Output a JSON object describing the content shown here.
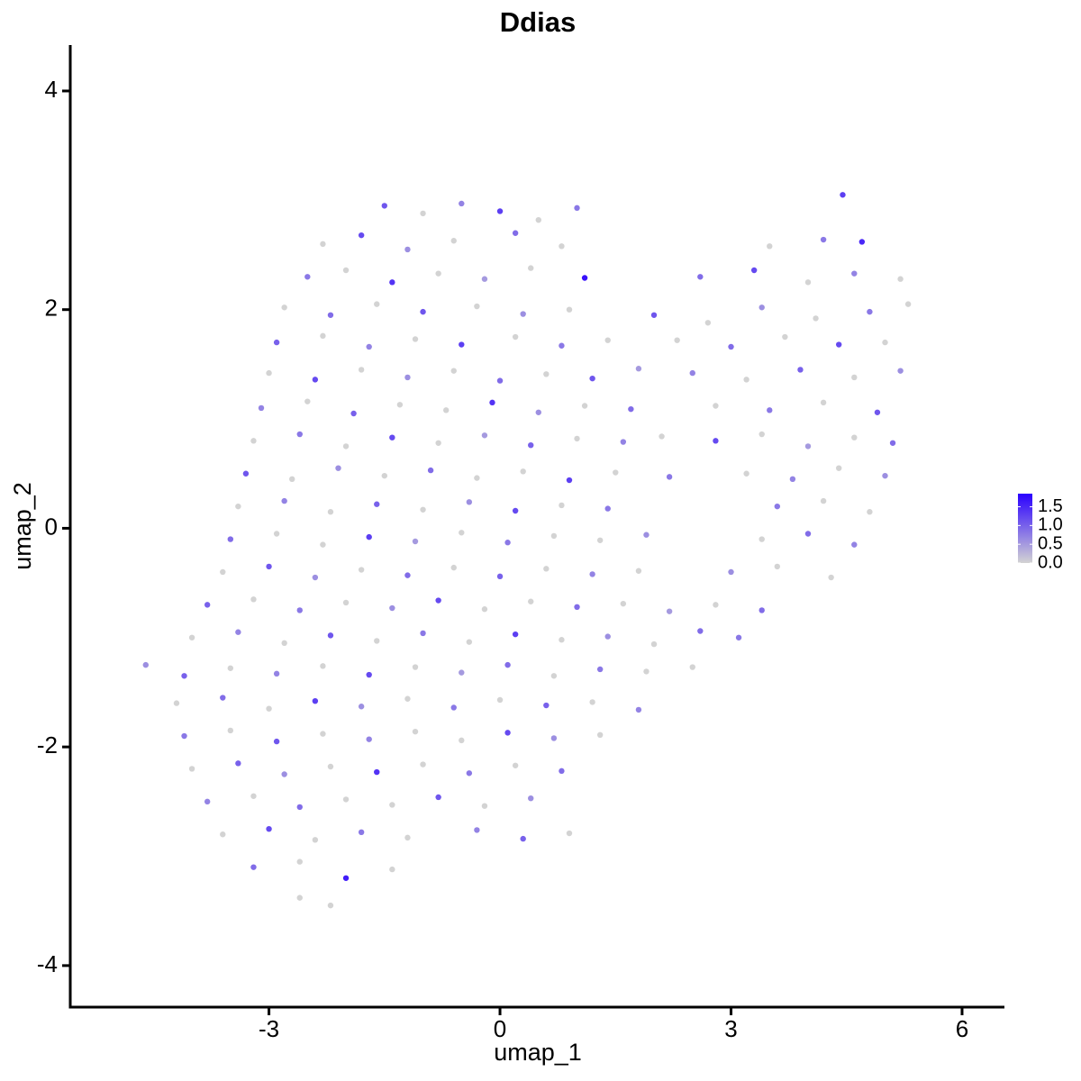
{
  "chart_data": {
    "type": "scatter",
    "title": "Ddias",
    "x_label": "umap_1",
    "y_label": "umap_2",
    "xlim": [
      -5.58,
      6.55
    ],
    "ylim": [
      -4.38,
      4.42
    ],
    "xticks": [
      -3,
      0,
      3,
      6
    ],
    "yticks": [
      -4,
      -2,
      0,
      2,
      4
    ],
    "grid": false,
    "low_color": "#d3d3d3",
    "high_color": "#2a00ff",
    "colorbar": {
      "lim": [
        0,
        1.85
      ],
      "ticks": [
        {
          "value": 0,
          "label": "0.0"
        },
        0.5,
        {
          "value": 1,
          "label": "1.0"
        },
        1.5
      ]
    },
    "x": [
      -1.5,
      -1.0,
      -0.5,
      0.0,
      0.5,
      1.0,
      -2.3,
      -1.8,
      -1.2,
      -0.6,
      0.2,
      0.8,
      -2.5,
      -2.0,
      -1.4,
      -0.8,
      -0.2,
      0.4,
      1.1,
      -2.8,
      -2.2,
      -1.6,
      -1.0,
      -0.3,
      0.3,
      0.9,
      -2.9,
      -2.3,
      -1.7,
      -1.1,
      -0.5,
      0.2,
      0.8,
      1.4,
      -3.0,
      -2.4,
      -1.8,
      -1.2,
      -0.6,
      0.0,
      0.6,
      1.2,
      1.8,
      -3.1,
      -2.5,
      -1.9,
      -1.3,
      -0.7,
      -0.1,
      0.5,
      1.1,
      1.7,
      -3.2,
      -2.6,
      -2.0,
      -1.4,
      -0.8,
      -0.2,
      0.4,
      1.0,
      1.6,
      2.1,
      -3.3,
      -2.7,
      -2.1,
      -1.5,
      -0.9,
      -0.3,
      0.3,
      0.9,
      1.5,
      2.2,
      -3.4,
      -2.8,
      -2.2,
      -1.6,
      -1.0,
      -0.4,
      0.2,
      0.8,
      1.4,
      -3.5,
      -2.9,
      -2.3,
      -1.7,
      -1.1,
      -0.5,
      0.1,
      0.7,
      1.3,
      1.9,
      -3.6,
      -3.0,
      -2.4,
      -1.8,
      -1.2,
      -0.6,
      0.0,
      0.6,
      1.2,
      1.8,
      -3.8,
      -3.2,
      -2.6,
      -2.0,
      -1.4,
      -0.8,
      -0.2,
      0.4,
      1.0,
      1.6,
      2.2,
      -4.0,
      -3.4,
      -2.8,
      -2.2,
      -1.6,
      -1.0,
      -0.4,
      0.2,
      0.8,
      1.4,
      2.0,
      2.6,
      -4.6,
      -4.1,
      -3.5,
      -2.9,
      -2.3,
      -1.7,
      -1.1,
      -0.5,
      0.1,
      0.7,
      1.3,
      1.9,
      2.5,
      -4.2,
      -3.6,
      -3.0,
      -2.4,
      -1.8,
      -1.2,
      -0.6,
      0.0,
      0.6,
      1.2,
      1.8,
      -4.1,
      -3.5,
      -2.9,
      -2.3,
      -1.7,
      -1.1,
      -0.5,
      0.1,
      0.7,
      1.3,
      -4.0,
      -3.4,
      -2.8,
      -2.2,
      -1.6,
      -1.0,
      -0.4,
      0.2,
      0.8,
      -3.8,
      -3.2,
      -2.6,
      -2.0,
      -1.4,
      -0.8,
      -0.2,
      0.4,
      -3.6,
      -3.0,
      -2.4,
      -1.8,
      -1.2,
      -0.3,
      0.3,
      0.9,
      -3.2,
      -2.6,
      -2.0,
      -1.4,
      -2.6,
      -2.2,
      4.45,
      3.5,
      4.2,
      4.7,
      2.6,
      3.3,
      4.0,
      4.6,
      5.2,
      2.0,
      2.7,
      3.4,
      4.1,
      4.8,
      5.3,
      2.3,
      3.0,
      3.7,
      4.4,
      5.0,
      2.5,
      3.2,
      3.9,
      4.6,
      5.2,
      2.8,
      3.5,
      4.2,
      4.9,
      2.8,
      3.4,
      4.0,
      4.6,
      5.1,
      3.2,
      3.8,
      4.4,
      5.0,
      3.6,
      4.2,
      4.8,
      3.4,
      4.0,
      4.6,
      3.0,
      3.6,
      4.3,
      2.8,
      3.4,
      3.1
    ],
    "values": [
      2.95,
      2.88,
      2.97,
      2.9,
      2.82,
      2.93,
      2.6,
      2.68,
      2.55,
      2.63,
      2.7,
      2.58,
      2.3,
      2.36,
      2.25,
      2.33,
      2.28,
      2.38,
      2.29,
      2.02,
      1.95,
      2.05,
      1.98,
      2.03,
      1.96,
      2.0,
      1.7,
      1.76,
      1.66,
      1.73,
      1.68,
      1.75,
      1.67,
      1.72,
      1.42,
      1.36,
      1.45,
      1.38,
      1.44,
      1.35,
      1.41,
      1.37,
      1.46,
      1.1,
      1.16,
      1.05,
      1.13,
      1.08,
      1.15,
      1.06,
      1.12,
      1.09,
      0.8,
      0.86,
      0.75,
      0.83,
      0.78,
      0.85,
      0.76,
      0.82,
      0.79,
      0.84,
      0.5,
      0.45,
      0.55,
      0.48,
      0.53,
      0.46,
      0.52,
      0.44,
      0.51,
      0.47,
      0.2,
      0.25,
      0.15,
      0.22,
      0.17,
      0.24,
      0.16,
      0.21,
      0.18,
      -0.1,
      -0.05,
      -0.15,
      -0.08,
      -0.12,
      -0.04,
      -0.13,
      -0.07,
      -0.11,
      -0.06,
      -0.4,
      -0.35,
      -0.45,
      -0.38,
      -0.43,
      -0.36,
      -0.44,
      -0.37,
      -0.42,
      -0.39,
      -0.7,
      -0.65,
      -0.75,
      -0.68,
      -0.73,
      -0.66,
      -0.74,
      -0.67,
      -0.72,
      -0.69,
      -0.76,
      -1.0,
      -0.95,
      -1.05,
      -0.98,
      -1.03,
      -0.96,
      -1.04,
      -0.97,
      -1.02,
      -0.99,
      -1.06,
      -0.94,
      -1.25,
      -1.35,
      -1.28,
      -1.33,
      -1.26,
      -1.34,
      -1.27,
      -1.32,
      -1.25,
      -1.35,
      -1.29,
      -1.31,
      -1.27,
      -1.6,
      -1.55,
      -1.65,
      -1.58,
      -1.63,
      -1.56,
      -1.64,
      -1.57,
      -1.62,
      -1.59,
      -1.66,
      -1.9,
      -1.85,
      -1.95,
      -1.88,
      -1.93,
      -1.86,
      -1.94,
      -1.87,
      -1.92,
      -1.89,
      -2.2,
      -2.15,
      -2.25,
      -2.18,
      -2.23,
      -2.16,
      -2.24,
      -2.17,
      -2.22,
      -2.5,
      -2.45,
      -2.55,
      -2.48,
      -2.53,
      -2.46,
      -2.54,
      -2.47,
      -2.8,
      -2.75,
      -2.85,
      -2.78,
      -2.83,
      -2.76,
      -2.84,
      -2.79,
      -3.1,
      -3.05,
      -3.2,
      -3.12,
      -3.38,
      -3.45,
      3.05,
      2.58,
      2.64,
      2.62,
      2.3,
      2.36,
      2.25,
      2.33,
      2.28,
      1.95,
      1.88,
      2.02,
      1.92,
      1.98,
      2.05,
      1.72,
      1.66,
      1.75,
      1.68,
      1.7,
      1.42,
      1.36,
      1.45,
      1.38,
      1.44,
      1.12,
      1.08,
      1.15,
      1.06,
      0.8,
      0.86,
      0.75,
      0.83,
      0.78,
      0.5,
      0.45,
      0.55,
      0.48,
      0.2,
      0.25,
      0.15,
      -0.1,
      -0.05,
      -0.15,
      -0.4,
      -0.35,
      -0.45,
      -0.7,
      -0.75,
      -1.0
    ],
    "expression": [
      1.1,
      0,
      0.7,
      1.3,
      0,
      0.8,
      0,
      1.2,
      0.6,
      0,
      0.9,
      0,
      0.8,
      0,
      1.4,
      0,
      0.5,
      0,
      1.7,
      0,
      0.9,
      0,
      1.1,
      0,
      0.6,
      0,
      1.0,
      0,
      0.7,
      0,
      1.3,
      0,
      0.8,
      0,
      0,
      1.2,
      0,
      0.6,
      0,
      0.9,
      0,
      1.1,
      0.5,
      0.7,
      0,
      1.0,
      0,
      0,
      1.4,
      0.6,
      0,
      0.9,
      0,
      0.8,
      0,
      1.2,
      0,
      0.5,
      1.0,
      0,
      0.7,
      0,
      1.1,
      0,
      0.6,
      0,
      0.9,
      0,
      0,
      1.3,
      0,
      0.8,
      0,
      0.7,
      0,
      1.0,
      0,
      0.6,
      1.2,
      0,
      0.8,
      0.9,
      0,
      0,
      1.3,
      0.5,
      0,
      0.8,
      0,
      0,
      0.6,
      0,
      1.1,
      0.6,
      0,
      0.9,
      0,
      1.0,
      0,
      0.7,
      0,
      1.0,
      0,
      0.8,
      0,
      0.6,
      1.2,
      0,
      0,
      0.9,
      0,
      0.5,
      0,
      0.7,
      0,
      1.1,
      0,
      0.8,
      0,
      1.3,
      0,
      0.6,
      0,
      0.9,
      0.6,
      1.0,
      0,
      0.7,
      0,
      1.2,
      0,
      0.5,
      0.9,
      0,
      0.8,
      0,
      0,
      0,
      0.9,
      0,
      1.3,
      0.6,
      0,
      0.8,
      0,
      1.0,
      0,
      0.7,
      0.8,
      0,
      1.1,
      0,
      0.7,
      0,
      0,
      1.2,
      0.6,
      0,
      0,
      1.0,
      0.6,
      0,
      1.4,
      0,
      0.8,
      0,
      0.9,
      0.7,
      0,
      0.9,
      0,
      0,
      1.1,
      0,
      0.6,
      0,
      1.2,
      0,
      0.8,
      0,
      0.7,
      1.0,
      0,
      0.9,
      0,
      1.6,
      0,
      0,
      0,
      1.3,
      0,
      0.8,
      1.5,
      0.9,
      1.2,
      0,
      0.7,
      0,
      1.1,
      0,
      0.6,
      0,
      0.8,
      0,
      0,
      0.9,
      0,
      1.2,
      0,
      0.7,
      0,
      1.0,
      0,
      0.6,
      0,
      0.8,
      0,
      1.1,
      1.2,
      0,
      0.5,
      0,
      0.9,
      0,
      0.7,
      0,
      0.6,
      0.8,
      0,
      0,
      0,
      0.9,
      0.7,
      0.6,
      0,
      0,
      0,
      0.9,
      0.8
    ]
  }
}
